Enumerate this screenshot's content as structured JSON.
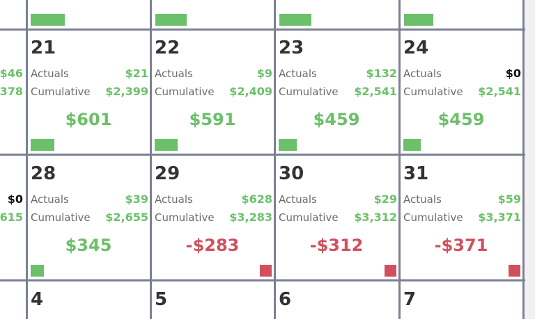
{
  "rows": [
    {
      "left": {
        "actuals": "$46",
        "cumulative": "378"
      },
      "cells": [
        {
          "day": "21",
          "actuals_label": "Actuals",
          "actuals": "$21",
          "cumulative_label": "Cumulative",
          "cumulative": "$2,399",
          "balance": "$601"
        },
        {
          "day": "22",
          "actuals_label": "Actuals",
          "actuals": "$9",
          "cumulative_label": "Cumulative",
          "cumulative": "$2,409",
          "balance": "$591"
        },
        {
          "day": "23",
          "actuals_label": "Actuals",
          "actuals": "$132",
          "cumulative_label": "Cumulative",
          "cumulative": "$2,541",
          "balance": "$459"
        },
        {
          "day": "24",
          "actuals_label": "Actuals",
          "actuals": "$0",
          "cumulative_label": "Cumulative",
          "cumulative": "$2,541",
          "balance": "$459"
        }
      ]
    },
    {
      "left": {
        "actuals": "$0",
        "cumulative": ",615"
      },
      "cells": [
        {
          "day": "28",
          "actuals_label": "Actuals",
          "actuals": "$39",
          "cumulative_label": "Cumulative",
          "cumulative": "$2,655",
          "balance": "$345"
        },
        {
          "day": "29",
          "actuals_label": "Actuals",
          "actuals": "$628",
          "cumulative_label": "Cumulative",
          "cumulative": "$3,283",
          "balance": "-$283"
        },
        {
          "day": "30",
          "actuals_label": "Actuals",
          "actuals": "$29",
          "cumulative_label": "Cumulative",
          "cumulative": "$3,312",
          "balance": "-$312"
        },
        {
          "day": "31",
          "actuals_label": "Actuals",
          "actuals": "$59",
          "cumulative_label": "Cumulative",
          "cumulative": "$3,371",
          "balance": "-$371"
        }
      ]
    },
    {
      "cells": [
        {
          "day": "4"
        },
        {
          "day": "5"
        },
        {
          "day": "6"
        },
        {
          "day": "7"
        }
      ]
    }
  ]
}
